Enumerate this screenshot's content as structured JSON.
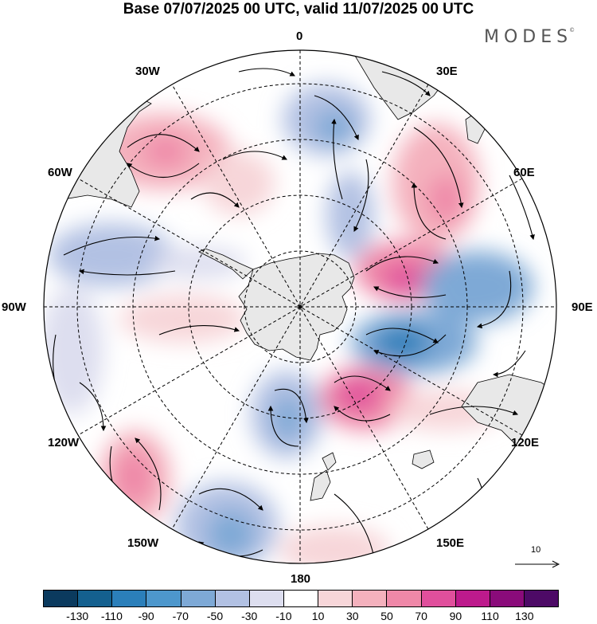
{
  "title": "Base 07/07/2025 00 UTC, valid 11/07/2025 00 UTC",
  "brand": "MODES",
  "brand_mark": "©",
  "map": {
    "projection": "south polar stereographic",
    "variable": "wind anomaly",
    "longitude_labels": {
      "top": "0",
      "top_right": "30E",
      "right_upper": "60E",
      "right": "90E",
      "right_lower": "120E",
      "bottom_right": "150E",
      "bottom": "180",
      "bottom_left": "150W",
      "left_lower": "120W",
      "left": "90W",
      "left_upper": "60W",
      "top_left": "30W"
    },
    "reference_vector": "10",
    "palette": {
      "ocean": "#ffffff",
      "land": "#e8e8e8",
      "outline": "#000000"
    }
  },
  "colorbar": {
    "colors": [
      "#0b3a5e",
      "#14608f",
      "#2b7fba",
      "#4d97cc",
      "#7ea9d6",
      "#b2c1e3",
      "#dddeef",
      "#ffffff",
      "#f7d6d9",
      "#f4b1bd",
      "#ef88a8",
      "#e04f9c",
      "#bd1a8c",
      "#8a0b7a",
      "#4d0a66"
    ],
    "ticks": [
      "-130",
      "-110",
      "-90",
      "-70",
      "-50",
      "-30",
      "-10",
      "10",
      "30",
      "50",
      "70",
      "90",
      "110",
      "130"
    ]
  }
}
